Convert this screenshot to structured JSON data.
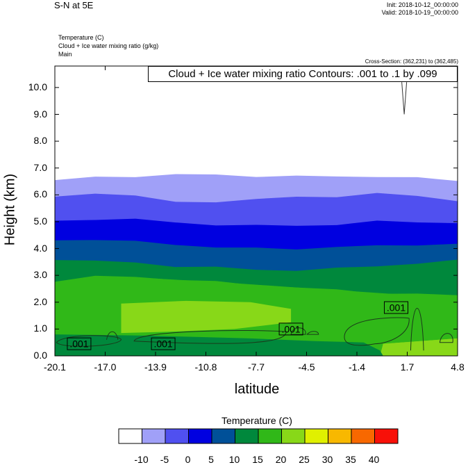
{
  "header": {
    "title": "S-N at 5E",
    "init": "Init: 2018-10-12_00:00:00",
    "valid": "Valid: 2018-10-19_00:00:00",
    "field1": "Temperature   (C)",
    "field2": "Cloud + Ice water mixing ratio   (g/kg)",
    "field3": "Main",
    "cross_section": "Cross-Section: (362,231) to (362,485)"
  },
  "legend_text": "Cloud + Ice water mixing ratio Contours: .001 to .1 by .099",
  "colorbar": {
    "title": "Temperature  (C)",
    "labels": [
      "-10",
      "-5",
      "0",
      "5",
      "10",
      "15",
      "20",
      "25",
      "30",
      "35",
      "40"
    ],
    "colors": [
      "#ffffff",
      "#a0a0f8",
      "#5050f0",
      "#0000e0",
      "#005098",
      "#00883c",
      "#30b818",
      "#88d818",
      "#e0f000",
      "#f8b800",
      "#f86800",
      "#f81008"
    ]
  },
  "chart_data": {
    "type": "area",
    "xlabel": "latitude",
    "ylabel": "Height (km)",
    "xlim": [
      -20.1,
      4.8
    ],
    "ylim": [
      0,
      10.8
    ],
    "xticks": [
      "-20.1",
      "-17.0",
      "-13.9",
      "-10.8",
      "-7.7",
      "-4.5",
      "-1.4",
      "1.7",
      "4.8"
    ],
    "yticks": [
      "0.0",
      "1.0",
      "2.0",
      "3.0",
      "4.0",
      "5.0",
      "6.0",
      "7.0",
      "8.0",
      "9.0",
      "10.0"
    ],
    "isotherm_tops_km": [
      {
        "temp_band": "-10 to -5",
        "color": "#a0a0f8",
        "top": [
          6.55,
          6.65,
          6.7,
          6.75,
          6.75,
          6.7,
          6.68,
          6.7,
          6.68,
          6.62,
          6.55
        ]
      },
      {
        "temp_band": "-5 to 0",
        "color": "#5050f0",
        "top": [
          5.9,
          6.05,
          6.0,
          5.7,
          5.75,
          5.85,
          5.9,
          5.95,
          6.05,
          5.95,
          5.8
        ]
      },
      {
        "temp_band": "0 to 5",
        "color": "#0000e0",
        "top": [
          5.0,
          5.1,
          5.1,
          4.95,
          4.9,
          4.85,
          4.85,
          4.9,
          5.0,
          5.0,
          4.95
        ]
      },
      {
        "temp_band": "5 to 10",
        "color": "#005098",
        "top": [
          4.3,
          4.35,
          4.25,
          4.15,
          4.05,
          4.0,
          4.0,
          4.05,
          4.1,
          4.15,
          4.15
        ]
      },
      {
        "temp_band": "10 to 15",
        "color": "#00883c",
        "top": [
          3.6,
          3.55,
          3.45,
          3.35,
          3.3,
          3.2,
          3.2,
          3.25,
          3.35,
          3.45,
          3.55
        ]
      },
      {
        "temp_band": "15 to 20",
        "color": "#30b818",
        "top": [
          2.8,
          2.95,
          2.95,
          2.85,
          2.75,
          2.65,
          2.55,
          2.45,
          2.35,
          2.3,
          2.25
        ]
      },
      {
        "temp_band": "20 to 25",
        "color": "#88d818",
        "top": [
          0.0,
          0.0,
          1.95,
          2.05,
          2.0,
          1.95,
          1.75,
          0.0,
          0.0,
          0.55,
          0.6
        ]
      }
    ],
    "contours": [
      {
        "label": ".001",
        "x": -18.6,
        "y": 0.45
      },
      {
        "label": ".001",
        "x": -13.4,
        "y": 0.45
      },
      {
        "label": ".001",
        "x": -5.5,
        "y": 1.0
      },
      {
        "label": ".001",
        "x": 1.0,
        "y": 1.8
      }
    ],
    "grid": false
  }
}
